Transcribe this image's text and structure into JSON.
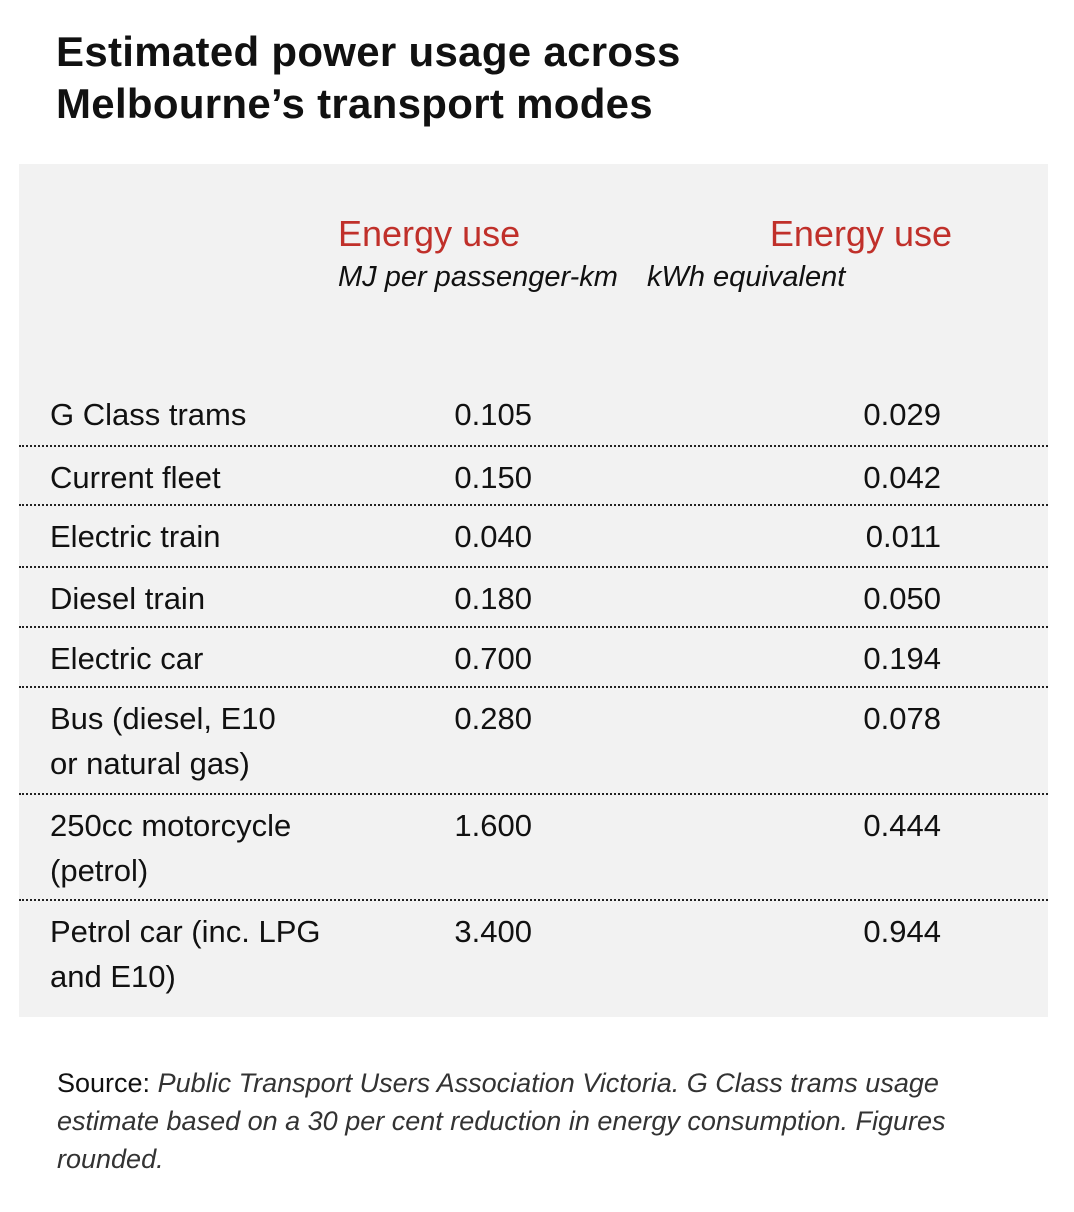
{
  "chart_data": {
    "type": "table",
    "title_lines": [
      "Estimated power usage across",
      "Melbourne’s transport modes"
    ],
    "columns": [
      {
        "label": "Energy use",
        "unit": "MJ per passenger-km"
      },
      {
        "label": "Energy use",
        "unit": "kWh equivalent"
      }
    ],
    "rows": [
      {
        "mode": "G Class trams",
        "mj": "0.105",
        "kwh": "0.029"
      },
      {
        "mode": "Current fleet",
        "mj": "0.150",
        "kwh": "0.042"
      },
      {
        "mode": "Electric train",
        "mj": "0.040",
        "kwh": "0.011"
      },
      {
        "mode": "Diesel train",
        "mj": "0.180",
        "kwh": "0.050"
      },
      {
        "mode": "Electric car",
        "mj": "0.700",
        "kwh": "0.194"
      },
      {
        "mode": "Bus (diesel, E10 or natural gas)",
        "mj": "0.280",
        "kwh": "0.078"
      },
      {
        "mode": "250cc motorcycle (petrol)",
        "mj": "1.600",
        "kwh": "0.444"
      },
      {
        "mode": "Petrol car (inc. LPG and E10)",
        "mj": "3.400",
        "kwh": "0.944"
      }
    ],
    "source_label": "Source:",
    "source_text": "Public Transport Users Association Victoria. G Class trams usage estimate based on a 30 per cent reduction in energy consumption. Figures rounded.",
    "colors": {
      "header": "#c0302a",
      "panel": "#f2f2f2"
    }
  }
}
